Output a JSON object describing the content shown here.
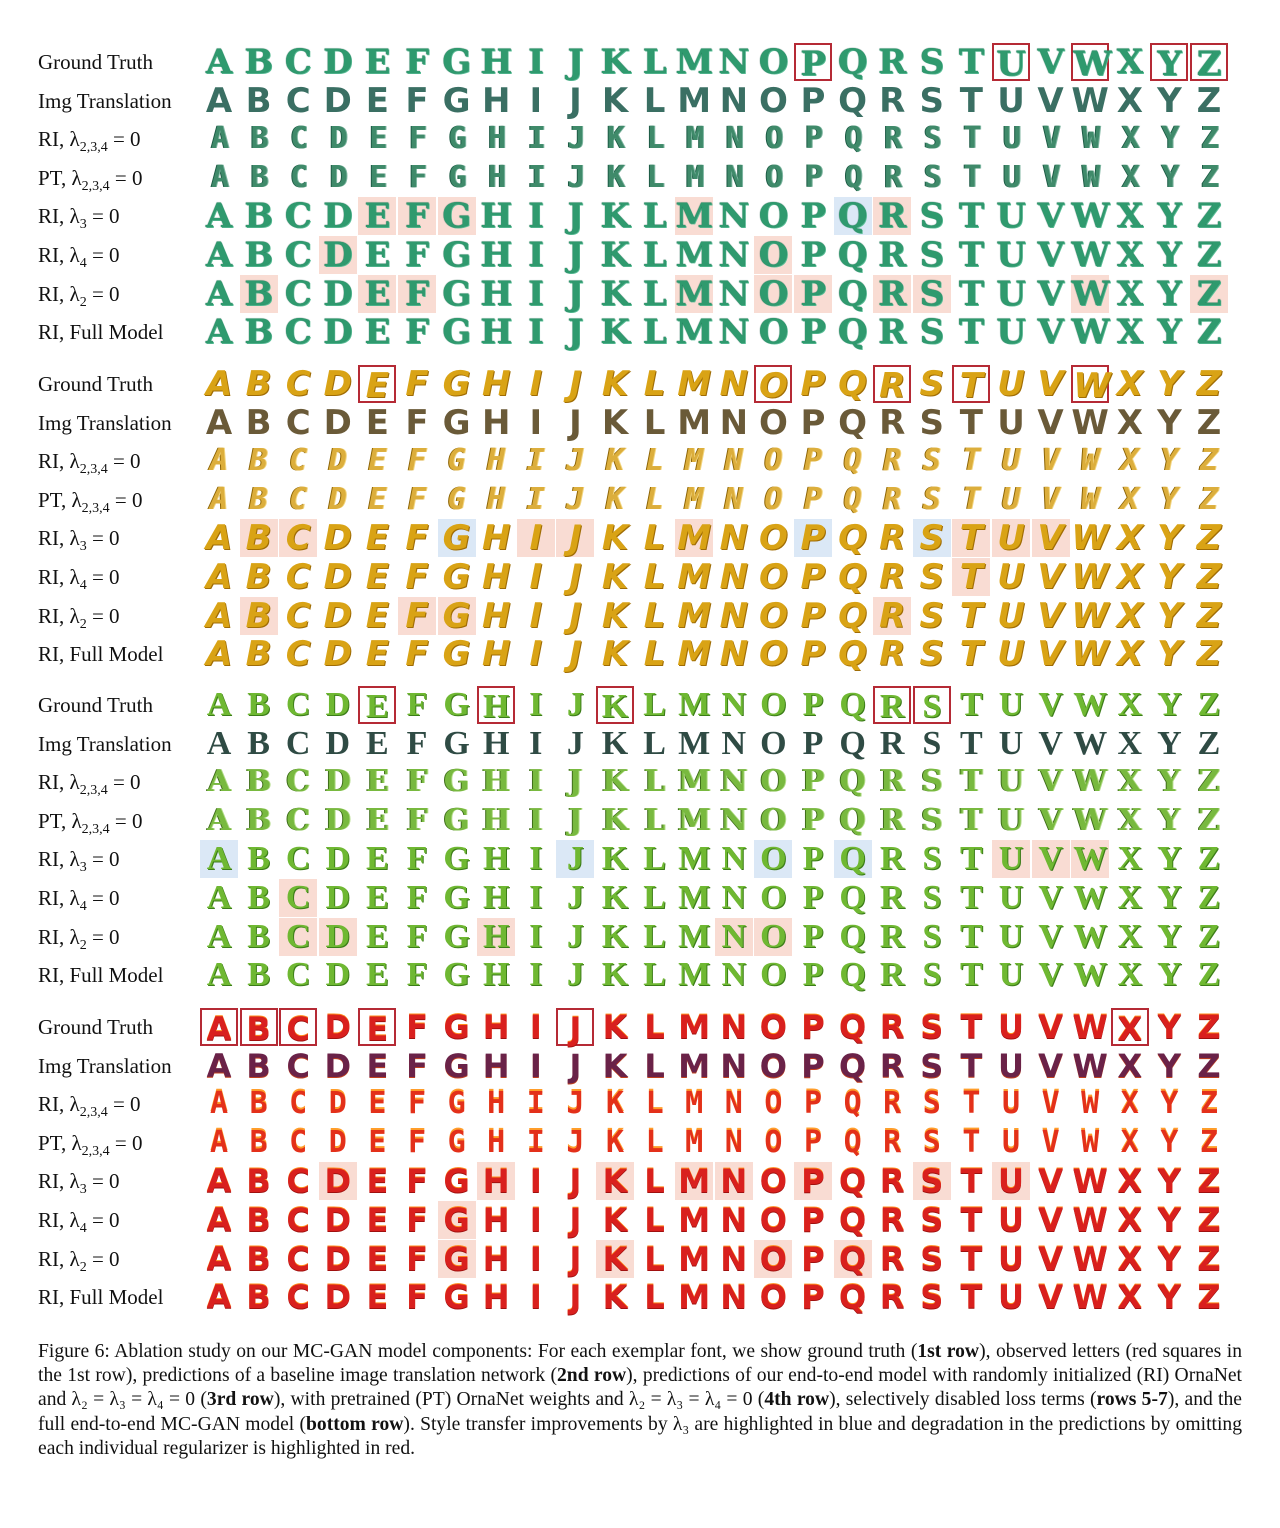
{
  "letters": [
    "A",
    "B",
    "C",
    "D",
    "E",
    "F",
    "G",
    "H",
    "I",
    "J",
    "K",
    "L",
    "M",
    "N",
    "O",
    "P",
    "Q",
    "R",
    "S",
    "T",
    "U",
    "V",
    "W",
    "X",
    "Y",
    "Z"
  ],
  "row_labels": [
    {
      "text": "Ground Truth",
      "lambda": ""
    },
    {
      "text": "Img Translation",
      "lambda": ""
    },
    {
      "text": "RI, ",
      "lambda": "λ",
      "sub": "2,3,4",
      "eq": " = 0"
    },
    {
      "text": "PT, ",
      "lambda": "λ",
      "sub": "2,3,4",
      "eq": " = 0"
    },
    {
      "text": "RI, ",
      "lambda": "λ",
      "sub": "3",
      "eq": " = 0"
    },
    {
      "text": "RI, ",
      "lambda": "λ",
      "sub": "4",
      "eq": " = 0"
    },
    {
      "text": "RI, ",
      "lambda": "λ",
      "sub": "2",
      "eq": " = 0"
    },
    {
      "text": "RI, Full Model",
      "lambda": ""
    }
  ],
  "blocks": [
    {
      "style": "green",
      "observed": [
        15,
        20,
        22,
        24,
        25
      ],
      "highlights": {
        "4": {
          "red": [
            4,
            5,
            6,
            12,
            17
          ],
          "blue": [
            16
          ]
        },
        "5": {
          "red": [
            3,
            14
          ],
          "blue": []
        },
        "6": {
          "red": [
            1,
            4,
            5,
            12,
            14,
            15,
            17,
            18,
            22,
            25
          ],
          "blue": []
        }
      }
    },
    {
      "style": "gold",
      "observed": [
        4,
        14,
        17,
        19,
        22
      ],
      "highlights": {
        "4": {
          "red": [
            1,
            2,
            8,
            9,
            12,
            19,
            20,
            21
          ],
          "blue": [
            6,
            15,
            18
          ]
        },
        "5": {
          "red": [
            19
          ],
          "blue": []
        },
        "6": {
          "red": [
            1,
            5,
            6,
            17
          ],
          "blue": []
        }
      }
    },
    {
      "style": "lime",
      "observed": [
        4,
        7,
        10,
        17,
        18
      ],
      "highlights": {
        "4": {
          "red": [
            20,
            21,
            22
          ],
          "blue": [
            0,
            9,
            14,
            16
          ]
        },
        "5": {
          "red": [
            2
          ],
          "blue": []
        },
        "6": {
          "red": [
            2,
            3,
            7,
            13,
            14
          ],
          "blue": []
        }
      }
    },
    {
      "style": "red",
      "observed": [
        0,
        1,
        2,
        4,
        9,
        23
      ],
      "highlights": {
        "4": {
          "red": [
            3,
            7,
            10,
            12,
            13,
            15,
            18,
            20
          ],
          "blue": []
        },
        "5": {
          "red": [
            6
          ],
          "blue": []
        },
        "6": {
          "red": [
            6,
            10,
            14,
            16
          ],
          "blue": []
        }
      }
    }
  ],
  "caption": {
    "p1": "Figure 6: Ablation study on our MC-GAN model components: For each exemplar font, we show ground truth (",
    "b1": "1st row",
    "p2": "), observed letters (red squares in the 1st row), predictions of a baseline image translation network (",
    "b2": "2nd row",
    "p3": "), predictions of our end-to-end model with randomly initialized (RI) OrnaNet and λ₂ = λ₃ = λ₄ = 0 (",
    "b3": "3rd row",
    "p4": "), with pretrained (PT) OrnaNet weights and λ₂ = λ₃ = λ₄ = 0 (",
    "b4": "4th row",
    "p5": "), selectively disabled loss terms (",
    "b5": "rows 5-7",
    "p6": "), and the full end-to-end MC-GAN model (",
    "b6": "bottom row",
    "p7": "). Style transfer improvements by λ₃ are highlighted in blue and degradation in the predictions by omitting each individual regularizer is highlighted in red."
  },
  "colors": {
    "highlight_red": "#f9dcd3",
    "highlight_blue": "#dbe8f6",
    "observed_box": "#b52a35"
  }
}
